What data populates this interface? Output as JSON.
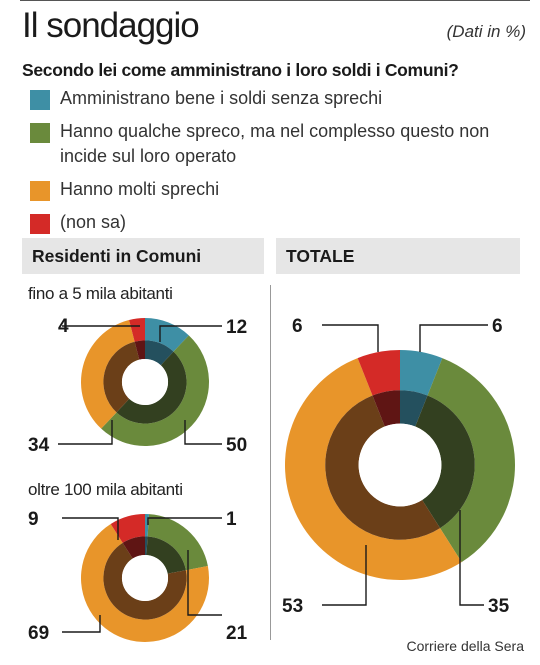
{
  "title": "Il sondaggio",
  "note": "(Dati in %)",
  "question": "Secondo lei come amministrano i loro soldi i Comuni?",
  "legend": [
    {
      "label": "Amministrano bene i soldi senza sprechi",
      "color": "#3e8fa5"
    },
    {
      "label": "Hanno qualche spreco, ma nel complesso questo non incide sul loro operato",
      "color": "#6a8a3c"
    },
    {
      "label": "Hanno molti sprechi",
      "color": "#e8952a"
    },
    {
      "label": "(non sa)",
      "color": "#d42a27"
    }
  ],
  "headers": {
    "left": "Residenti in Comuni",
    "right": "TOTALE"
  },
  "credit": "Corriere della Sera",
  "chart_data": [
    {
      "type": "pie",
      "title": "fino a 5 mila abitanti",
      "categories": [
        "Amministrano bene i soldi senza sprechi",
        "Hanno qualche spreco, ma nel complesso questo non incide sul loro operato",
        "Hanno molti sprechi",
        "(non sa)"
      ],
      "values": [
        12,
        50,
        34,
        4
      ],
      "unit": "%"
    },
    {
      "type": "pie",
      "title": "oltre 100 mila abitanti",
      "categories": [
        "Amministrano bene i soldi senza sprechi",
        "Hanno qualche spreco, ma nel complesso questo non incide sul loro operato",
        "Hanno molti sprechi",
        "(non sa)"
      ],
      "values": [
        1,
        21,
        69,
        9
      ],
      "unit": "%"
    },
    {
      "type": "pie",
      "title": "TOTALE",
      "categories": [
        "Amministrano bene i soldi senza sprechi",
        "Hanno qualche spreco, ma nel complesso questo non incide sul loro operato",
        "Hanno molti sprechi",
        "(non sa)"
      ],
      "values": [
        6,
        35,
        53,
        6
      ],
      "unit": "%"
    }
  ]
}
